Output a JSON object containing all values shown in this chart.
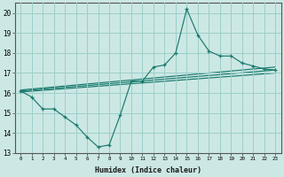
{
  "xlabel": "Humidex (Indice chaleur)",
  "ylabel": "",
  "xlim": [
    -0.5,
    23.5
  ],
  "ylim": [
    13,
    20.5
  ],
  "yticks": [
    13,
    14,
    15,
    16,
    17,
    18,
    19,
    20
  ],
  "xticks": [
    0,
    1,
    2,
    3,
    4,
    5,
    6,
    7,
    8,
    9,
    10,
    11,
    12,
    13,
    14,
    15,
    16,
    17,
    18,
    19,
    20,
    21,
    22,
    23
  ],
  "bg_color": "#cce8e4",
  "line_color": "#1a7a6e",
  "grid_color": "#9dceca",
  "line1_x": [
    0,
    1,
    2,
    3,
    4,
    5,
    6,
    7,
    8,
    9,
    10,
    11,
    12,
    13,
    14,
    15,
    16,
    17,
    18,
    19,
    20,
    21,
    22,
    23
  ],
  "line1_y": [
    16.1,
    15.8,
    15.2,
    15.2,
    14.8,
    14.4,
    13.8,
    13.3,
    13.4,
    14.9,
    16.6,
    16.6,
    17.3,
    17.4,
    18.0,
    20.2,
    18.9,
    18.1,
    17.85,
    17.85,
    17.5,
    17.35,
    17.2,
    17.15
  ],
  "line2_x": [
    0,
    23
  ],
  "line2_y": [
    16.05,
    17.0
  ],
  "line3_x": [
    0,
    23
  ],
  "line3_y": [
    16.1,
    17.15
  ],
  "line4_x": [
    0,
    23
  ],
  "line4_y": [
    16.15,
    17.3
  ]
}
